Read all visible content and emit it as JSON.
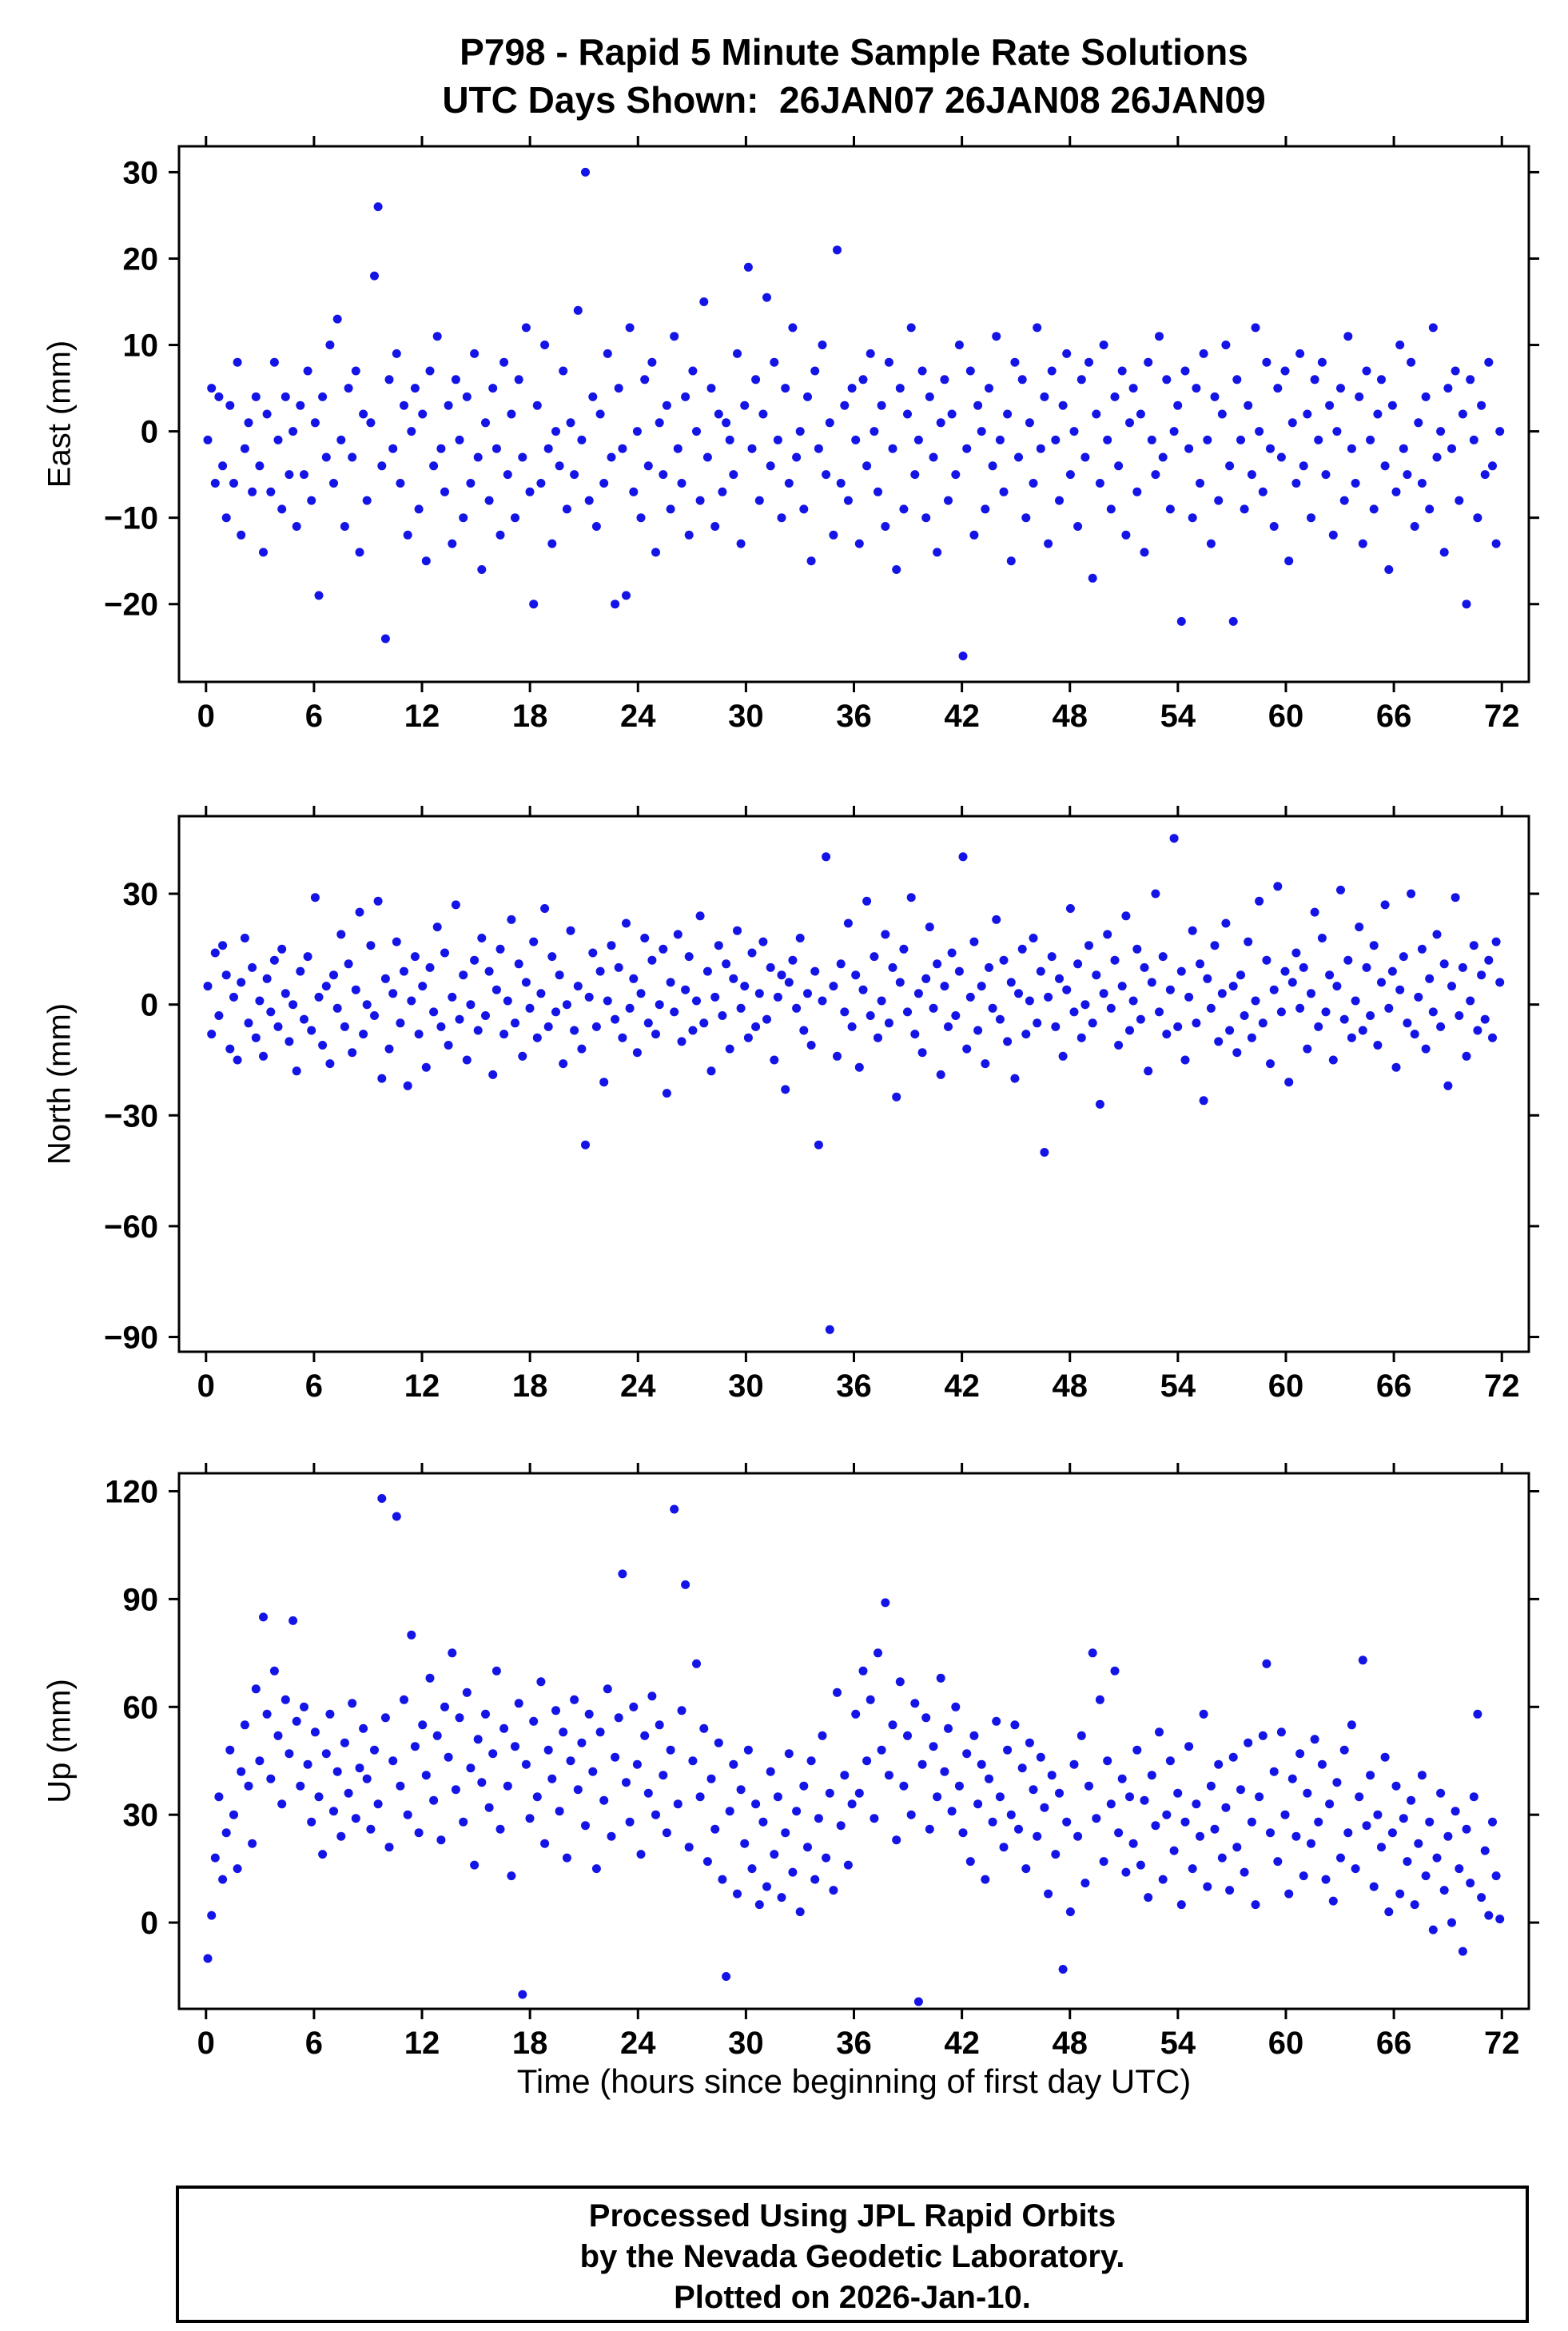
{
  "title": {
    "line1": "P798 - Rapid 5 Minute Sample Rate Solutions",
    "line2": "UTC Days Shown:  26JAN07 26JAN08 26JAN09"
  },
  "xlabel": "Time (hours since beginning of first day UTC)",
  "footer": {
    "line1": "Processed Using JPL Rapid Orbits",
    "line2": "by the Nevada Geodetic Laboratory.",
    "line3": "Plotted on 2026-Jan-10."
  },
  "style": {
    "point_color": "#1414E6",
    "axis_color": "#000000"
  },
  "chart_data": [
    {
      "type": "scatter",
      "name": "east",
      "ylabel": "East (mm)",
      "xlim": [
        -1.5,
        73.5
      ],
      "ylim": [
        -29,
        33
      ],
      "xticks": [
        0,
        6,
        12,
        18,
        24,
        30,
        36,
        42,
        48,
        54,
        60,
        66,
        72
      ],
      "yticks": [
        -20,
        -10,
        0,
        10,
        20,
        30
      ],
      "x_start": 0.1,
      "x_step": 0.2057,
      "y": [
        -1,
        5,
        -6,
        4,
        -4,
        -10,
        3,
        -6,
        8,
        -12,
        -2,
        1,
        -7,
        4,
        -4,
        -14,
        2,
        -7,
        8,
        -1,
        -9,
        4,
        -5,
        0,
        -11,
        3,
        -5,
        7,
        -8,
        1,
        -19,
        4,
        -3,
        10,
        -6,
        13,
        -1,
        -11,
        5,
        -3,
        7,
        -14,
        2,
        -8,
        1,
        18,
        26,
        -4,
        -24,
        6,
        -2,
        9,
        -6,
        3,
        -12,
        0,
        5,
        -9,
        2,
        -15,
        7,
        -4,
        11,
        -2,
        -7,
        3,
        -13,
        6,
        -1,
        -10,
        4,
        -6,
        9,
        -3,
        -16,
        1,
        -8,
        5,
        -2,
        -12,
        8,
        -5,
        2,
        -10,
        6,
        -3,
        12,
        -7,
        -20,
        3,
        -6,
        10,
        -2,
        -13,
        0,
        -4,
        7,
        -9,
        1,
        -5,
        14,
        -1,
        30,
        -8,
        4,
        -11,
        2,
        -6,
        9,
        -3,
        -20,
        5,
        -2,
        -19,
        12,
        -7,
        0,
        -10,
        6,
        -4,
        8,
        -14,
        1,
        -5,
        3,
        -9,
        11,
        -2,
        -6,
        4,
        -12,
        7,
        0,
        -8,
        15,
        -3,
        5,
        -11,
        2,
        -7,
        1,
        -1,
        -5,
        9,
        -13,
        3,
        19,
        -2,
        6,
        -8,
        2,
        15.5,
        -4,
        8,
        -1,
        -10,
        5,
        -6,
        12,
        -3,
        0,
        -9,
        4,
        -15,
        7,
        -2,
        10,
        -5,
        1,
        -12,
        21,
        -6,
        3,
        -8,
        5,
        -1,
        -13,
        6,
        -4,
        9,
        0,
        -7,
        3,
        -11,
        8,
        -2,
        -16,
        5,
        -9,
        2,
        12,
        -5,
        -1,
        7,
        -10,
        4,
        -3,
        -14,
        1,
        6,
        -8,
        2,
        -5,
        10,
        -26,
        -2,
        7,
        -12,
        3,
        0,
        -9,
        5,
        -4,
        11,
        -1,
        -7,
        2,
        -15,
        8,
        -3,
        6,
        -10,
        1,
        -6,
        12,
        -2,
        4,
        -13,
        7,
        -1,
        -8,
        3,
        9,
        -5,
        0,
        -11,
        6,
        -3,
        8,
        -17,
        2,
        -6,
        10,
        -1,
        -9,
        4,
        -4,
        7,
        -12,
        1,
        5,
        -7,
        2,
        -14,
        8,
        -1,
        -5,
        11,
        -3,
        6,
        -9,
        0,
        3,
        -22,
        7,
        -2,
        -10,
        5,
        -6,
        9,
        -1,
        -13,
        4,
        -8,
        2,
        10,
        -4,
        -22,
        6,
        -1,
        -9,
        3,
        -5,
        12,
        0,
        -7,
        8,
        -2,
        -11,
        5,
        -3,
        7,
        -15,
        1,
        -6,
        9,
        -4,
        2,
        -10,
        6,
        -1,
        8,
        -5,
        3,
        -12,
        0,
        5,
        -8,
        11,
        -2,
        -6,
        4,
        -13,
        7,
        -1,
        -9,
        2,
        6,
        -4,
        -16,
        3,
        -7,
        10,
        -2,
        -5,
        8,
        -11,
        1,
        -6,
        4,
        -9,
        12,
        -3,
        0,
        -14,
        5,
        -2,
        7,
        -8,
        2,
        -20,
        6,
        -1,
        -10,
        3,
        -5,
        8,
        -4,
        -13,
        0
      ]
    },
    {
      "type": "scatter",
      "name": "north",
      "ylabel": "North (mm)",
      "xlim": [
        -1.5,
        73.5
      ],
      "ylim": [
        -94,
        51
      ],
      "xticks": [
        0,
        6,
        12,
        18,
        24,
        30,
        36,
        42,
        48,
        54,
        60,
        66,
        72
      ],
      "yticks": [
        -90,
        -60,
        -30,
        0,
        30
      ],
      "x_start": 0.1,
      "x_step": 0.2057,
      "y": [
        5,
        -8,
        14,
        -3,
        16,
        8,
        -12,
        2,
        -15,
        6,
        18,
        -5,
        10,
        -9,
        1,
        -14,
        7,
        -2,
        12,
        -6,
        15,
        3,
        -10,
        0,
        -18,
        9,
        -4,
        13,
        -7,
        29,
        2,
        -11,
        5,
        -16,
        8,
        -1,
        19,
        -6,
        11,
        -13,
        4,
        25,
        -8,
        0,
        16,
        -3,
        28,
        -20,
        7,
        -12,
        3,
        17,
        -5,
        9,
        -22,
        1,
        13,
        -8,
        5,
        -17,
        10,
        -2,
        21,
        -6,
        14,
        -11,
        2,
        27,
        -4,
        8,
        -15,
        0,
        12,
        -7,
        18,
        -3,
        9,
        -19,
        4,
        15,
        -8,
        1,
        23,
        -5,
        11,
        -14,
        6,
        -1,
        17,
        -9,
        3,
        26,
        -6,
        13,
        -2,
        8,
        -16,
        0,
        20,
        -7,
        5,
        -12,
        -38,
        2,
        14,
        -6,
        9,
        -21,
        1,
        16,
        -4,
        10,
        -9,
        22,
        -1,
        7,
        -13,
        3,
        18,
        -5,
        12,
        -8,
        0,
        15,
        -24,
        6,
        -2,
        19,
        -10,
        4,
        13,
        -7,
        1,
        24,
        -5,
        9,
        -18,
        2,
        16,
        -3,
        11,
        -12,
        7,
        20,
        -1,
        5,
        -9,
        14,
        -6,
        3,
        17,
        -4,
        10,
        -15,
        2,
        8,
        -23,
        6,
        12,
        -1,
        18,
        -7,
        3,
        -11,
        9,
        -38,
        1,
        40,
        -88,
        5,
        -14,
        11,
        -2,
        22,
        -6,
        8,
        -17,
        4,
        28,
        -3,
        13,
        -9,
        1,
        19,
        -5,
        10,
        -25,
        6,
        15,
        -2,
        29,
        -8,
        3,
        -13,
        7,
        21,
        -1,
        11,
        -19,
        5,
        -6,
        14,
        -3,
        9,
        40,
        -12,
        2,
        17,
        -7,
        5,
        -16,
        10,
        -1,
        23,
        -4,
        12,
        -10,
        6,
        -20,
        3,
        15,
        -8,
        1,
        18,
        -5,
        9,
        -40,
        2,
        13,
        -6,
        7,
        -14,
        4,
        26,
        -2,
        11,
        -9,
        0,
        16,
        -5,
        8,
        -27,
        3,
        19,
        -1,
        12,
        -11,
        5,
        24,
        -7,
        1,
        15,
        -4,
        10,
        -18,
        6,
        30,
        -2,
        13,
        -8,
        4,
        45,
        -6,
        9,
        -15,
        2,
        20,
        -5,
        11,
        -26,
        7,
        -1,
        16,
        -10,
        3,
        22,
        -7,
        5,
        -13,
        8,
        -3,
        17,
        -9,
        1,
        28,
        -5,
        12,
        -16,
        4,
        32,
        -2,
        9,
        -21,
        6,
        14,
        -1,
        10,
        -12,
        3,
        25,
        -6,
        18,
        -2,
        8,
        -15,
        5,
        31,
        -4,
        12,
        -9,
        1,
        21,
        -7,
        10,
        -3,
        16,
        -11,
        6,
        27,
        -1,
        9,
        -17,
        4,
        13,
        -5,
        30,
        -8,
        2,
        15,
        -12,
        7,
        -2,
        19,
        -6,
        11,
        -22,
        5,
        29,
        -3,
        10,
        -14,
        1,
        16,
        -7,
        8,
        -4,
        12,
        -9,
        17,
        6
      ]
    },
    {
      "type": "scatter",
      "name": "up",
      "ylabel": "Up (mm)",
      "xlim": [
        -1.5,
        73.5
      ],
      "ylim": [
        -24,
        125
      ],
      "xticks": [
        0,
        6,
        12,
        18,
        24,
        30,
        36,
        42,
        48,
        54,
        60,
        66,
        72
      ],
      "yticks": [
        0,
        30,
        60,
        90,
        120
      ],
      "x_start": 0.1,
      "x_step": 0.2057,
      "y": [
        -10,
        2,
        18,
        35,
        12,
        25,
        48,
        30,
        15,
        42,
        55,
        38,
        22,
        65,
        45,
        85,
        58,
        40,
        70,
        52,
        33,
        62,
        47,
        84,
        56,
        38,
        60,
        44,
        28,
        53,
        35,
        19,
        47,
        58,
        31,
        42,
        24,
        50,
        36,
        61,
        29,
        43,
        54,
        40,
        26,
        48,
        33,
        118,
        57,
        21,
        45,
        113,
        38,
        62,
        30,
        80,
        49,
        25,
        55,
        41,
        68,
        34,
        52,
        23,
        60,
        46,
        75,
        37,
        57,
        28,
        64,
        43,
        16,
        51,
        39,
        58,
        32,
        47,
        70,
        26,
        54,
        38,
        13,
        49,
        61,
        -20,
        44,
        29,
        56,
        35,
        67,
        22,
        48,
        40,
        59,
        31,
        53,
        18,
        45,
        62,
        37,
        50,
        27,
        58,
        42,
        15,
        53,
        34,
        65,
        24,
        46,
        57,
        97,
        39,
        28,
        60,
        44,
        19,
        52,
        36,
        63,
        30,
        55,
        41,
        25,
        48,
        115,
        33,
        59,
        94,
        21,
        45,
        72,
        35,
        54,
        17,
        40,
        26,
        50,
        12,
        -15,
        31,
        44,
        8,
        37,
        22,
        48,
        15,
        33,
        5,
        28,
        10,
        42,
        19,
        35,
        7,
        25,
        47,
        14,
        31,
        3,
        38,
        21,
        45,
        12,
        29,
        52,
        18,
        36,
        9,
        64,
        27,
        41,
        16,
        33,
        58,
        36,
        70,
        45,
        62,
        29,
        75,
        48,
        89,
        41,
        55,
        23,
        67,
        38,
        52,
        30,
        61,
        -22,
        44,
        57,
        26,
        49,
        35,
        68,
        42,
        54,
        31,
        60,
        38,
        25,
        47,
        17,
        52,
        33,
        44,
        12,
        40,
        28,
        56,
        35,
        21,
        48,
        30,
        55,
        26,
        43,
        15,
        50,
        37,
        24,
        46,
        32,
        8,
        41,
        19,
        36,
        -13,
        28,
        3,
        44,
        24,
        52,
        11,
        38,
        75,
        29,
        62,
        17,
        45,
        33,
        70,
        25,
        40,
        14,
        35,
        22,
        48,
        16,
        34,
        7,
        41,
        27,
        53,
        12,
        30,
        45,
        20,
        36,
        5,
        28,
        49,
        15,
        33,
        24,
        58,
        10,
        38,
        26,
        44,
        18,
        32,
        9,
        46,
        21,
        37,
        14,
        50,
        28,
        5,
        35,
        52,
        72,
        25,
        42,
        17,
        53,
        30,
        8,
        40,
        24,
        47,
        13,
        36,
        22,
        51,
        28,
        44,
        12,
        33,
        6,
        39,
        18,
        48,
        25,
        55,
        15,
        35,
        73,
        27,
        41,
        10,
        30,
        21,
        46,
        3,
        25,
        38,
        8,
        29,
        17,
        34,
        5,
        22,
        41,
        13,
        28,
        -2,
        18,
        36,
        9,
        24,
        0,
        31,
        15,
        -8,
        26,
        11,
        35,
        58,
        7,
        20,
        2,
        28,
        13,
        1
      ]
    }
  ]
}
